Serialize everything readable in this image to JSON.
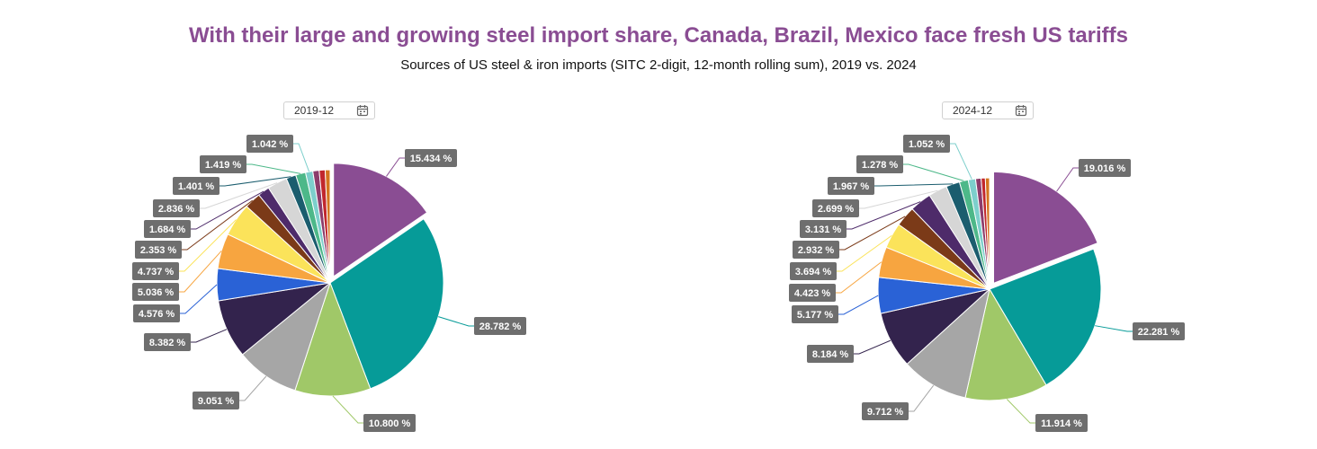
{
  "title": "With their large and growing steel import share, Canada, Brazil, Mexico face fresh US tariffs",
  "subtitle": "Sources of US steel & iron imports (SITC 2-digit, 12-month rolling sum), 2019 vs. 2024",
  "pickers": [
    {
      "value": "2019-12",
      "icon": "calendar-icon"
    },
    {
      "value": "2024-12",
      "icon": "calendar-icon"
    }
  ],
  "colors": [
    "#8a4d93",
    "#069b98",
    "#a0c868",
    "#a6a6a6",
    "#33234d",
    "#2a62d6",
    "#f7a540",
    "#fbe35a",
    "#7b3a18",
    "#4e2b6a",
    "#d6d6d6",
    "#1b5d6e",
    "#4db889",
    "#7dcfcc",
    "#8c3c6b",
    "#c1272d",
    "#d4751f"
  ],
  "chart_data": [
    {
      "type": "pie",
      "period": "2019-12",
      "values": [
        15.434,
        28.782,
        10.8,
        9.051,
        8.382,
        4.576,
        5.036,
        4.737,
        2.353,
        1.684,
        2.836,
        1.401,
        1.419,
        1.042,
        0.9,
        0.85,
        0.7
      ],
      "labels": [
        "15.434 %",
        "28.782 %",
        "10.800 %",
        "9.051 %",
        "8.382 %",
        "4.576 %",
        "5.036 %",
        "4.737 %",
        "2.353 %",
        "1.684 %",
        "2.836 %",
        "1.401 %",
        "1.419 %",
        "1.042 %",
        "",
        "",
        ""
      ]
    },
    {
      "type": "pie",
      "period": "2024-12",
      "values": [
        19.016,
        22.281,
        11.914,
        9.712,
        8.184,
        5.177,
        4.423,
        3.694,
        2.932,
        3.131,
        2.699,
        1.967,
        1.278,
        1.052,
        0.8,
        0.6,
        0.6
      ],
      "labels": [
        "19.016 %",
        "22.281 %",
        "11.914 %",
        "9.712 %",
        "8.184 %",
        "5.177 %",
        "4.423 %",
        "3.694 %",
        "2.932 %",
        "3.131 %",
        "2.699 %",
        "1.967 %",
        "1.278 %",
        "1.052 %",
        "",
        "",
        ""
      ]
    }
  ]
}
